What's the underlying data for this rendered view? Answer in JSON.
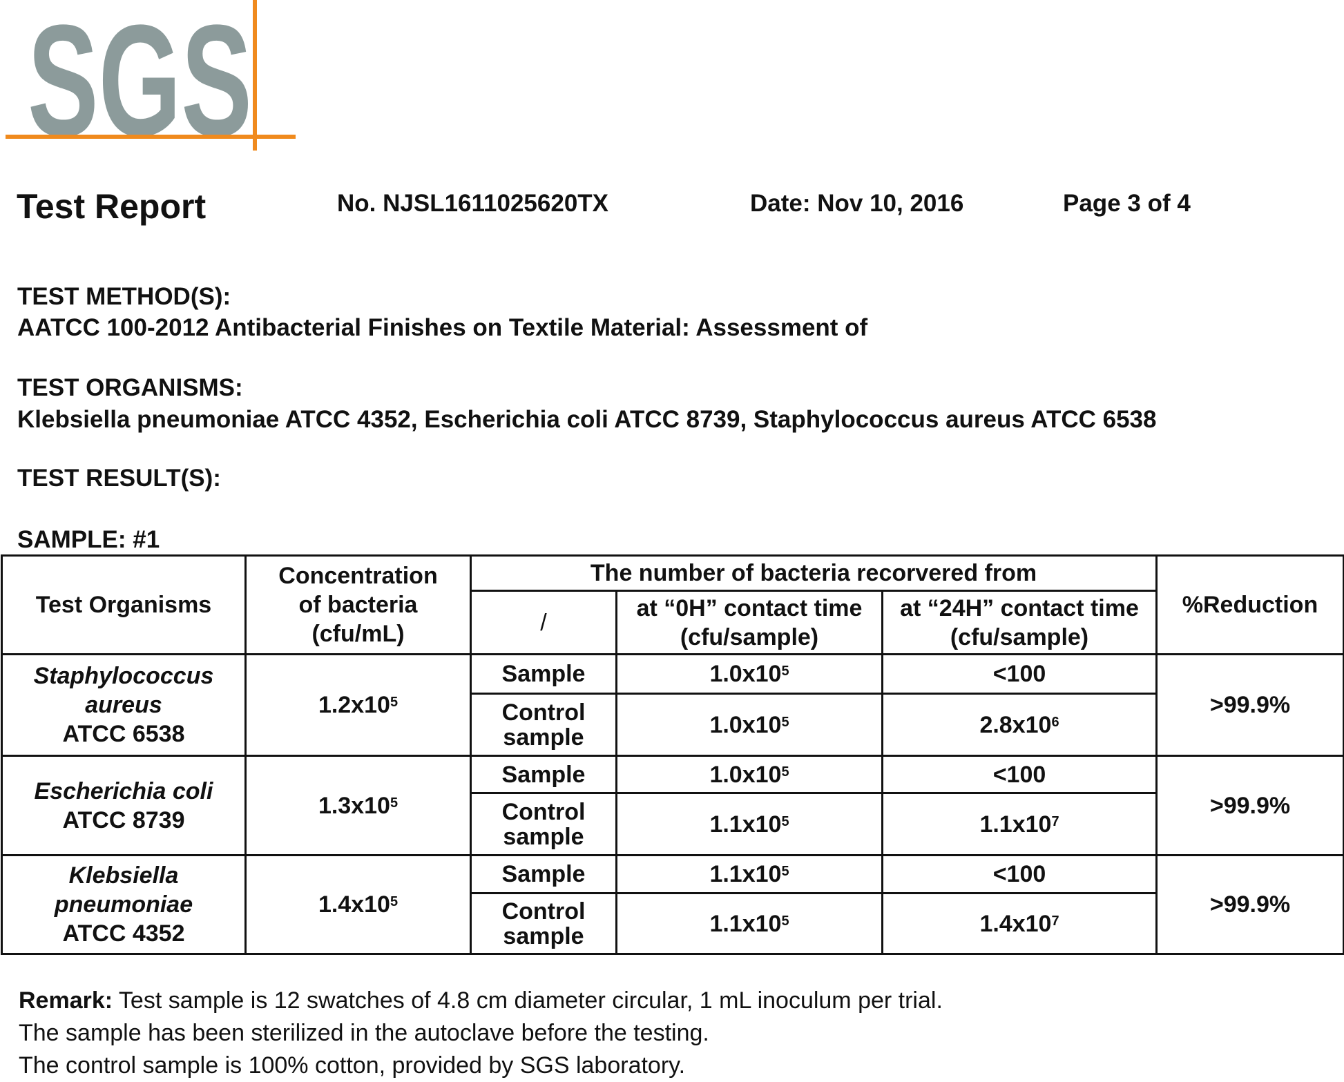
{
  "logo": {
    "text": "SGS",
    "letter_color": "#8c9b9b",
    "line_color": "#f08a1d"
  },
  "header": {
    "title": "Test Report",
    "report_no": "No. NJSL1611025620TX",
    "date": "Date: Nov 10, 2016",
    "page": "Page 3 of 4"
  },
  "method": {
    "label": "TEST METHOD(S):",
    "value": "AATCC 100-2012 Antibacterial Finishes on Textile Material: Assessment of"
  },
  "organisms": {
    "label": "TEST ORGANISMS:",
    "value": "Klebsiella pneumoniae ATCC 4352, Escherichia coli ATCC 8739, Staphylococcus aureus ATCC 6538"
  },
  "results": {
    "label": "TEST RESULT(S):"
  },
  "sample": {
    "label": "SAMPLE: #1"
  },
  "table": {
    "headers": {
      "organisms": "Test Organisms",
      "concentration": [
        "Concentration",
        "of bacteria",
        "(cfu/mL)"
      ],
      "recovered": "The number of bacteria recorvered from",
      "slash": "/",
      "h0": [
        "at “0H” contact time",
        "(cfu/sample)"
      ],
      "h24": [
        "at “24H” contact time",
        "(cfu/sample)"
      ],
      "reduction": "%Reduction"
    },
    "groups": [
      {
        "organism_name": [
          "Staphylococcus",
          "aureus"
        ],
        "strain": "ATCC 6538",
        "concentration": {
          "base": "1.2x10",
          "exp": "5"
        },
        "rows": [
          {
            "label": [
              "Sample"
            ],
            "h0": {
              "base": "1.0x10",
              "exp": "5"
            },
            "h24": {
              "base": "<100",
              "exp": ""
            }
          },
          {
            "label": [
              "Control",
              "sample"
            ],
            "h0": {
              "base": "1.0x10",
              "exp": "5"
            },
            "h24": {
              "base": "2.8x10",
              "exp": "6"
            }
          }
        ],
        "reduction": ">99.9%"
      },
      {
        "organism_name": [
          "Escherichia coli"
        ],
        "strain": "ATCC 8739",
        "concentration": {
          "base": "1.3x10",
          "exp": "5"
        },
        "rows": [
          {
            "label": [
              "Sample"
            ],
            "h0": {
              "base": "1.0x10",
              "exp": "5"
            },
            "h24": {
              "base": "<100",
              "exp": ""
            }
          },
          {
            "label": [
              "Control",
              "sample"
            ],
            "h0": {
              "base": "1.1x10",
              "exp": "5"
            },
            "h24": {
              "base": "1.1x10",
              "exp": "7"
            }
          }
        ],
        "reduction": ">99.9%"
      },
      {
        "organism_name": [
          "Klebsiella",
          "pneumoniae"
        ],
        "strain": "ATCC 4352",
        "concentration": {
          "base": "1.4x10",
          "exp": "5"
        },
        "rows": [
          {
            "label": [
              "Sample"
            ],
            "h0": {
              "base": "1.1x10",
              "exp": "5"
            },
            "h24": {
              "base": "<100",
              "exp": ""
            }
          },
          {
            "label": [
              "Control",
              "sample"
            ],
            "h0": {
              "base": "1.1x10",
              "exp": "5"
            },
            "h24": {
              "base": "1.4x10",
              "exp": "7"
            }
          }
        ],
        "reduction": ">99.9%"
      }
    ]
  },
  "remarks": {
    "label": "Remark:",
    "line1": " Test sample is 12 swatches of 4.8 cm diameter circular, 1 mL inoculum per trial.",
    "line2": "The sample has been sterilized in the autoclave before the testing.",
    "line3": "The control sample is 100% cotton, provided by SGS laboratory."
  }
}
